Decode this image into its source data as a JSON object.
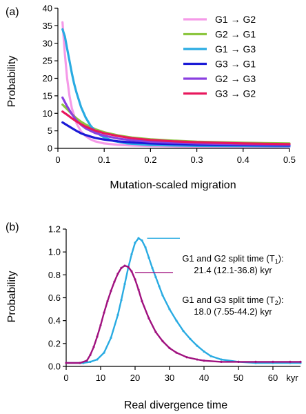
{
  "panels": {
    "a": {
      "label": "(a)",
      "chart_data": {
        "type": "line",
        "xlabel": "Mutation-scaled migration",
        "ylabel": "Probability",
        "xlim": [
          0,
          0.5
        ],
        "ylim": [
          0,
          40
        ],
        "xticks": [
          "0",
          "0.1",
          "0.2",
          "0.3",
          "0.4",
          "0.5"
        ],
        "yticks": [
          "0",
          "5",
          "10",
          "15",
          "20",
          "25",
          "30",
          "35",
          "40"
        ],
        "legend_position": "top-right",
        "series": [
          {
            "name": "G1 → G2",
            "color": "#f59ae8",
            "x": [
              0.01,
              0.015,
              0.02,
              0.025,
              0.03,
              0.04,
              0.05,
              0.06,
              0.07,
              0.08,
              0.1,
              0.13,
              0.16,
              0.2,
              0.25,
              0.3,
              0.4,
              0.5
            ],
            "y": [
              36,
              27,
              20,
              15,
              11.5,
              7.2,
              4.8,
              3.5,
              2.6,
              2.0,
              1.4,
              1.0,
              0.8,
              0.65,
              0.55,
              0.5,
              0.45,
              0.4
            ]
          },
          {
            "name": "G2 → G1",
            "color": "#8cc63f",
            "x": [
              0.01,
              0.02,
              0.03,
              0.04,
              0.05,
              0.06,
              0.08,
              0.1,
              0.13,
              0.16,
              0.2,
              0.25,
              0.3,
              0.4,
              0.5
            ],
            "y": [
              12.5,
              11.2,
              9.8,
              8.6,
              7.6,
              6.8,
              5.5,
              4.6,
              3.7,
              3.1,
              2.6,
              2.2,
              1.9,
              1.6,
              1.4
            ]
          },
          {
            "name": "G1 → G3",
            "color": "#29abe2",
            "x": [
              0.01,
              0.015,
              0.02,
              0.025,
              0.03,
              0.035,
              0.04,
              0.05,
              0.06,
              0.07,
              0.08,
              0.09,
              0.1,
              0.12,
              0.15,
              0.2,
              0.25,
              0.3,
              0.4,
              0.5
            ],
            "y": [
              34,
              32,
              28.5,
              25,
              21.5,
              18.5,
              16,
              11.8,
              8.8,
              6.6,
              5.0,
              3.9,
              3.1,
              2.1,
              1.4,
              0.95,
              0.8,
              0.7,
              0.65,
              0.6
            ]
          },
          {
            "name": "G3 → G1",
            "color": "#1a1ad6",
            "x": [
              0.01,
              0.02,
              0.03,
              0.04,
              0.05,
              0.06,
              0.08,
              0.1,
              0.13,
              0.16,
              0.2,
              0.25,
              0.3,
              0.4,
              0.5
            ],
            "y": [
              7.4,
              6.6,
              5.8,
              5.0,
              4.3,
              3.8,
              3.0,
              2.5,
              2.0,
              1.7,
              1.4,
              1.2,
              1.05,
              0.9,
              0.8
            ]
          },
          {
            "name": "G2 → G3",
            "color": "#8a3fe0",
            "x": [
              0.01,
              0.02,
              0.03,
              0.04,
              0.05,
              0.06,
              0.08,
              0.1,
              0.13,
              0.16,
              0.2,
              0.25,
              0.3,
              0.4,
              0.5
            ],
            "y": [
              14.5,
              12,
              9.8,
              8.0,
              6.7,
              5.7,
              4.4,
              3.6,
              2.8,
              2.3,
              1.9,
              1.6,
              1.4,
              1.15,
              1.0
            ]
          },
          {
            "name": "G3 → G2",
            "color": "#e8175d",
            "x": [
              0.01,
              0.02,
              0.03,
              0.04,
              0.05,
              0.06,
              0.08,
              0.1,
              0.13,
              0.16,
              0.2,
              0.25,
              0.3,
              0.4,
              0.5
            ],
            "y": [
              10.5,
              9.6,
              8.6,
              7.7,
              6.9,
              6.2,
              5.1,
              4.3,
              3.5,
              2.9,
              2.4,
              2.0,
              1.75,
              1.4,
              1.2
            ]
          }
        ]
      }
    },
    "b": {
      "label": "(b)",
      "chart_data": {
        "type": "line",
        "xlabel": "Real divergence time",
        "ylabel": "Probability",
        "x_unit": "kyr",
        "xlim": [
          0,
          68
        ],
        "ylim": [
          0,
          1.2
        ],
        "xticks": [
          "0",
          "10",
          "20",
          "30",
          "40",
          "50",
          "60"
        ],
        "yticks": [
          "0.0",
          "0.2",
          "0.4",
          "0.6",
          "0.8",
          "1.0",
          "1.2"
        ],
        "series": [
          {
            "name": "G1 and G2 split time (T₁)",
            "color": "#29abe2",
            "x": [
              0,
              5,
              7,
              9,
              11,
              13,
              15,
              16,
              17,
              18,
              19,
              20,
              21,
              22,
              23,
              24,
              25,
              26,
              27,
              28,
              30,
              32,
              34,
              36,
              38,
              40,
              42,
              45,
              50,
              55,
              60,
              65,
              68
            ],
            "y": [
              0.03,
              0.03,
              0.04,
              0.06,
              0.12,
              0.25,
              0.45,
              0.58,
              0.72,
              0.86,
              0.98,
              1.08,
              1.12,
              1.1,
              1.04,
              0.95,
              0.86,
              0.78,
              0.7,
              0.62,
              0.5,
              0.4,
              0.31,
              0.24,
              0.18,
              0.13,
              0.09,
              0.06,
              0.04,
              0.03,
              0.03,
              0.03,
              0.03
            ]
          },
          {
            "name": "G1 and G3 split time (T₂)",
            "color": "#a0117f",
            "x": [
              0,
              4,
              6,
              7,
              8,
              9,
              10,
              11,
              12,
              13,
              14,
              15,
              16,
              17,
              18,
              19,
              20,
              21,
              22,
              24,
              26,
              28,
              30,
              32,
              35,
              38,
              40,
              45,
              50,
              55,
              60,
              65,
              68
            ],
            "y": [
              0.03,
              0.03,
              0.05,
              0.1,
              0.17,
              0.26,
              0.36,
              0.47,
              0.57,
              0.66,
              0.74,
              0.81,
              0.86,
              0.88,
              0.87,
              0.83,
              0.76,
              0.67,
              0.57,
              0.42,
              0.3,
              0.22,
              0.16,
              0.12,
              0.08,
              0.06,
              0.05,
              0.04,
              0.04,
              0.04,
              0.04,
              0.04,
              0.04
            ]
          }
        ],
        "annotations": [
          {
            "line1": "G1 and G2 split time (T",
            "sub": "1",
            "line1_end": "):",
            "line2": "21.4 (12.1-36.8) kyr",
            "color": "#29abe2"
          },
          {
            "line1": "G1 and G3 split time (T",
            "sub": "2",
            "line1_end": "):",
            "line2": "18.0 (7.55-44.2) kyr",
            "color": "#a0117f"
          }
        ]
      }
    }
  }
}
